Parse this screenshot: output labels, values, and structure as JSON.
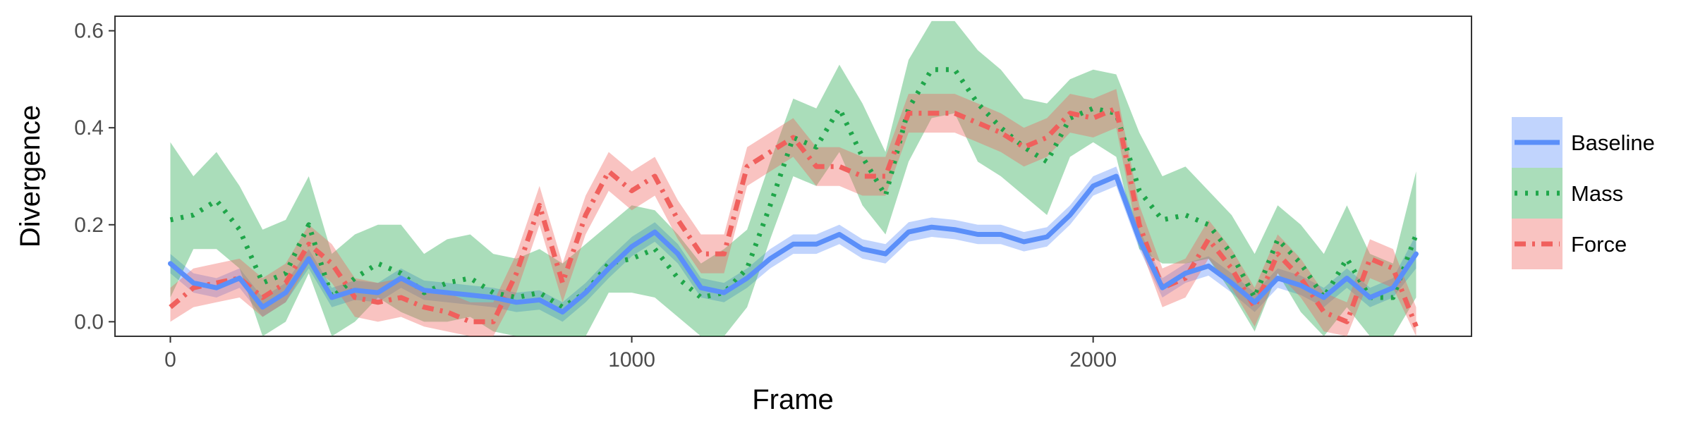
{
  "chart_data": {
    "type": "line",
    "title": "",
    "xlabel": "Frame",
    "ylabel": "Divergence",
    "xlim": [
      -120,
      2820
    ],
    "ylim": [
      -0.03,
      0.63
    ],
    "xticks": [
      0,
      1000,
      2000
    ],
    "xtick_labels": [
      "0",
      "1000",
      "2000"
    ],
    "yticks": [
      0.0,
      0.2,
      0.4,
      0.6
    ],
    "ytick_labels": [
      "0.0",
      "0.2",
      "0.4",
      "0.6"
    ],
    "grid": false,
    "legend_position": "right",
    "x": [
      0,
      50,
      100,
      150,
      200,
      250,
      300,
      350,
      400,
      450,
      500,
      550,
      600,
      650,
      700,
      750,
      800,
      850,
      900,
      950,
      1000,
      1050,
      1100,
      1150,
      1200,
      1250,
      1300,
      1350,
      1400,
      1450,
      1500,
      1550,
      1600,
      1650,
      1700,
      1750,
      1800,
      1850,
      1900,
      1950,
      2000,
      2050,
      2100,
      2150,
      2200,
      2250,
      2300,
      2350,
      2400,
      2450,
      2500,
      2550,
      2600,
      2650,
      2700
    ],
    "series": [
      {
        "name": "Baseline",
        "color": "#5b8ff9",
        "dash": "solid",
        "values": [
          0.12,
          0.08,
          0.07,
          0.09,
          0.03,
          0.06,
          0.13,
          0.05,
          0.065,
          0.06,
          0.09,
          0.065,
          0.06,
          0.055,
          0.05,
          0.04,
          0.045,
          0.02,
          0.06,
          0.11,
          0.155,
          0.185,
          0.14,
          0.07,
          0.06,
          0.09,
          0.13,
          0.16,
          0.16,
          0.18,
          0.15,
          0.14,
          0.185,
          0.195,
          0.19,
          0.18,
          0.18,
          0.165,
          0.175,
          0.22,
          0.28,
          0.3,
          0.17,
          0.07,
          0.1,
          0.115,
          0.08,
          0.04,
          0.09,
          0.075,
          0.05,
          0.09,
          0.05,
          0.07,
          0.14
        ],
        "lower": [
          0.1,
          0.06,
          0.05,
          0.07,
          0.01,
          0.04,
          0.11,
          0.03,
          0.045,
          0.04,
          0.07,
          0.045,
          0.04,
          0.035,
          0.03,
          0.02,
          0.025,
          0.0,
          0.04,
          0.09,
          0.135,
          0.165,
          0.12,
          0.05,
          0.04,
          0.07,
          0.11,
          0.14,
          0.14,
          0.16,
          0.13,
          0.12,
          0.165,
          0.175,
          0.17,
          0.16,
          0.16,
          0.145,
          0.155,
          0.2,
          0.26,
          0.28,
          0.15,
          0.05,
          0.08,
          0.095,
          0.06,
          0.02,
          0.07,
          0.055,
          0.03,
          0.07,
          0.03,
          0.05,
          0.11
        ],
        "upper": [
          0.14,
          0.1,
          0.09,
          0.11,
          0.05,
          0.08,
          0.15,
          0.07,
          0.085,
          0.08,
          0.11,
          0.085,
          0.08,
          0.075,
          0.07,
          0.06,
          0.065,
          0.04,
          0.08,
          0.13,
          0.175,
          0.205,
          0.16,
          0.09,
          0.08,
          0.11,
          0.15,
          0.18,
          0.18,
          0.2,
          0.17,
          0.16,
          0.205,
          0.215,
          0.21,
          0.2,
          0.2,
          0.185,
          0.195,
          0.24,
          0.3,
          0.32,
          0.19,
          0.09,
          0.12,
          0.135,
          0.1,
          0.06,
          0.11,
          0.095,
          0.07,
          0.11,
          0.07,
          0.09,
          0.18
        ]
      },
      {
        "name": "Mass",
        "color": "#1fa64a",
        "dash": "dotted",
        "values": [
          0.21,
          0.22,
          0.25,
          0.19,
          0.08,
          0.1,
          0.2,
          0.05,
          0.09,
          0.12,
          0.1,
          0.06,
          0.08,
          0.09,
          0.06,
          0.05,
          0.06,
          0.03,
          0.06,
          0.12,
          0.13,
          0.15,
          0.09,
          0.05,
          0.06,
          0.11,
          0.24,
          0.38,
          0.36,
          0.44,
          0.34,
          0.26,
          0.44,
          0.52,
          0.52,
          0.45,
          0.4,
          0.36,
          0.33,
          0.42,
          0.44,
          0.43,
          0.27,
          0.21,
          0.22,
          0.2,
          0.14,
          0.05,
          0.17,
          0.12,
          0.05,
          0.13,
          0.05,
          0.05,
          0.18
        ],
        "lower": [
          0.05,
          0.15,
          0.15,
          0.11,
          -0.03,
          0.0,
          0.1,
          -0.03,
          0.0,
          0.05,
          0.02,
          0.0,
          0.0,
          0.01,
          -0.02,
          -0.03,
          -0.03,
          -0.03,
          -0.03,
          0.06,
          0.06,
          0.05,
          0.01,
          -0.03,
          -0.03,
          0.03,
          0.17,
          0.3,
          0.28,
          0.35,
          0.24,
          0.18,
          0.33,
          0.42,
          0.43,
          0.33,
          0.3,
          0.26,
          0.22,
          0.34,
          0.37,
          0.34,
          0.15,
          0.12,
          0.12,
          0.13,
          0.06,
          -0.02,
          0.1,
          0.02,
          -0.03,
          0.03,
          -0.03,
          -0.03,
          0.05
        ],
        "upper": [
          0.37,
          0.3,
          0.35,
          0.28,
          0.19,
          0.21,
          0.3,
          0.14,
          0.18,
          0.2,
          0.2,
          0.14,
          0.17,
          0.18,
          0.14,
          0.13,
          0.15,
          0.12,
          0.16,
          0.2,
          0.24,
          0.23,
          0.18,
          0.12,
          0.15,
          0.19,
          0.33,
          0.46,
          0.44,
          0.53,
          0.45,
          0.35,
          0.54,
          0.62,
          0.62,
          0.56,
          0.52,
          0.46,
          0.45,
          0.5,
          0.52,
          0.51,
          0.39,
          0.3,
          0.32,
          0.27,
          0.22,
          0.14,
          0.24,
          0.2,
          0.14,
          0.24,
          0.14,
          0.12,
          0.31
        ]
      },
      {
        "name": "Force",
        "color": "#f0605d",
        "dash": "dashdot",
        "values": [
          0.03,
          0.07,
          0.08,
          0.09,
          0.05,
          0.08,
          0.16,
          0.12,
          0.05,
          0.04,
          0.05,
          0.03,
          0.02,
          0.0,
          0.0,
          0.1,
          0.24,
          0.08,
          0.22,
          0.31,
          0.27,
          0.3,
          0.21,
          0.14,
          0.14,
          0.32,
          0.35,
          0.38,
          0.32,
          0.32,
          0.3,
          0.3,
          0.43,
          0.43,
          0.43,
          0.41,
          0.39,
          0.36,
          0.38,
          0.43,
          0.42,
          0.44,
          0.2,
          0.07,
          0.09,
          0.17,
          0.11,
          0.03,
          0.14,
          0.09,
          0.02,
          0.0,
          0.13,
          0.11,
          -0.01
        ],
        "lower": [
          0.0,
          0.03,
          0.04,
          0.05,
          0.01,
          0.04,
          0.12,
          0.08,
          0.01,
          0.0,
          0.01,
          -0.01,
          -0.02,
          -0.03,
          -0.03,
          0.06,
          0.2,
          0.04,
          0.18,
          0.27,
          0.23,
          0.26,
          0.17,
          0.1,
          0.1,
          0.28,
          0.31,
          0.34,
          0.28,
          0.28,
          0.26,
          0.26,
          0.39,
          0.39,
          0.39,
          0.37,
          0.35,
          0.32,
          0.34,
          0.39,
          0.38,
          0.4,
          0.16,
          0.03,
          0.05,
          0.13,
          0.07,
          -0.01,
          0.1,
          0.05,
          -0.02,
          -0.03,
          0.09,
          0.07,
          -0.03
        ],
        "upper": [
          0.07,
          0.11,
          0.12,
          0.13,
          0.09,
          0.12,
          0.2,
          0.16,
          0.09,
          0.08,
          0.09,
          0.07,
          0.06,
          0.04,
          0.04,
          0.14,
          0.28,
          0.12,
          0.26,
          0.35,
          0.31,
          0.34,
          0.25,
          0.18,
          0.18,
          0.36,
          0.39,
          0.42,
          0.36,
          0.36,
          0.34,
          0.34,
          0.47,
          0.47,
          0.47,
          0.45,
          0.43,
          0.4,
          0.42,
          0.47,
          0.46,
          0.48,
          0.24,
          0.11,
          0.13,
          0.21,
          0.15,
          0.07,
          0.18,
          0.13,
          0.06,
          0.04,
          0.17,
          0.15,
          0.03
        ]
      }
    ]
  }
}
